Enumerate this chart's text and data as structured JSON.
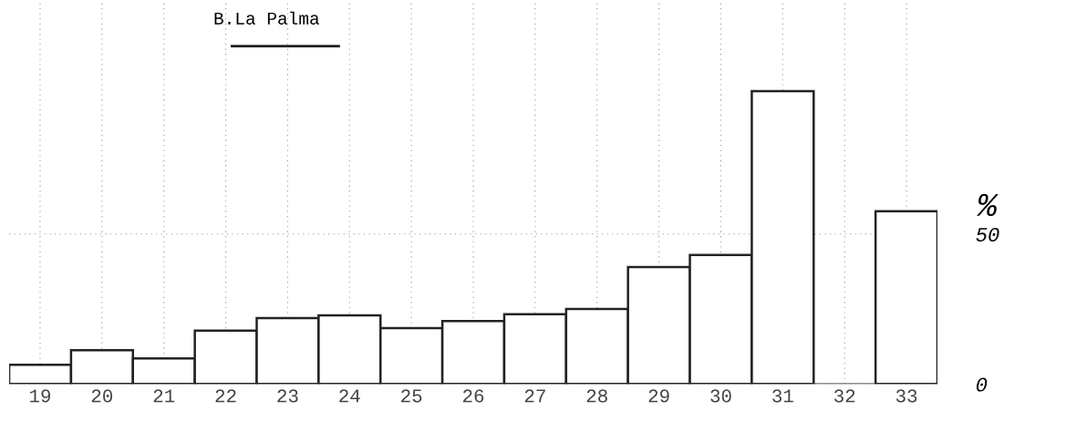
{
  "chart_data": {
    "type": "bar",
    "categories": [
      "19",
      "20",
      "21",
      "22",
      "23",
      "24",
      "25",
      "26",
      "27",
      "28",
      "29",
      "30",
      "31",
      "32",
      "33"
    ],
    "values": [
      6.4,
      11.3,
      8.5,
      17.8,
      22,
      22.9,
      18.6,
      21,
      23.3,
      25,
      39,
      43,
      97.6,
      0,
      57.6
    ],
    "color": "#ffffff",
    "ylabel": "%",
    "annotations": [
      "B.La Palma"
    ],
    "ylim": [
      0,
      128
    ],
    "yticks": [
      0,
      50
    ],
    "grid": true
  }
}
